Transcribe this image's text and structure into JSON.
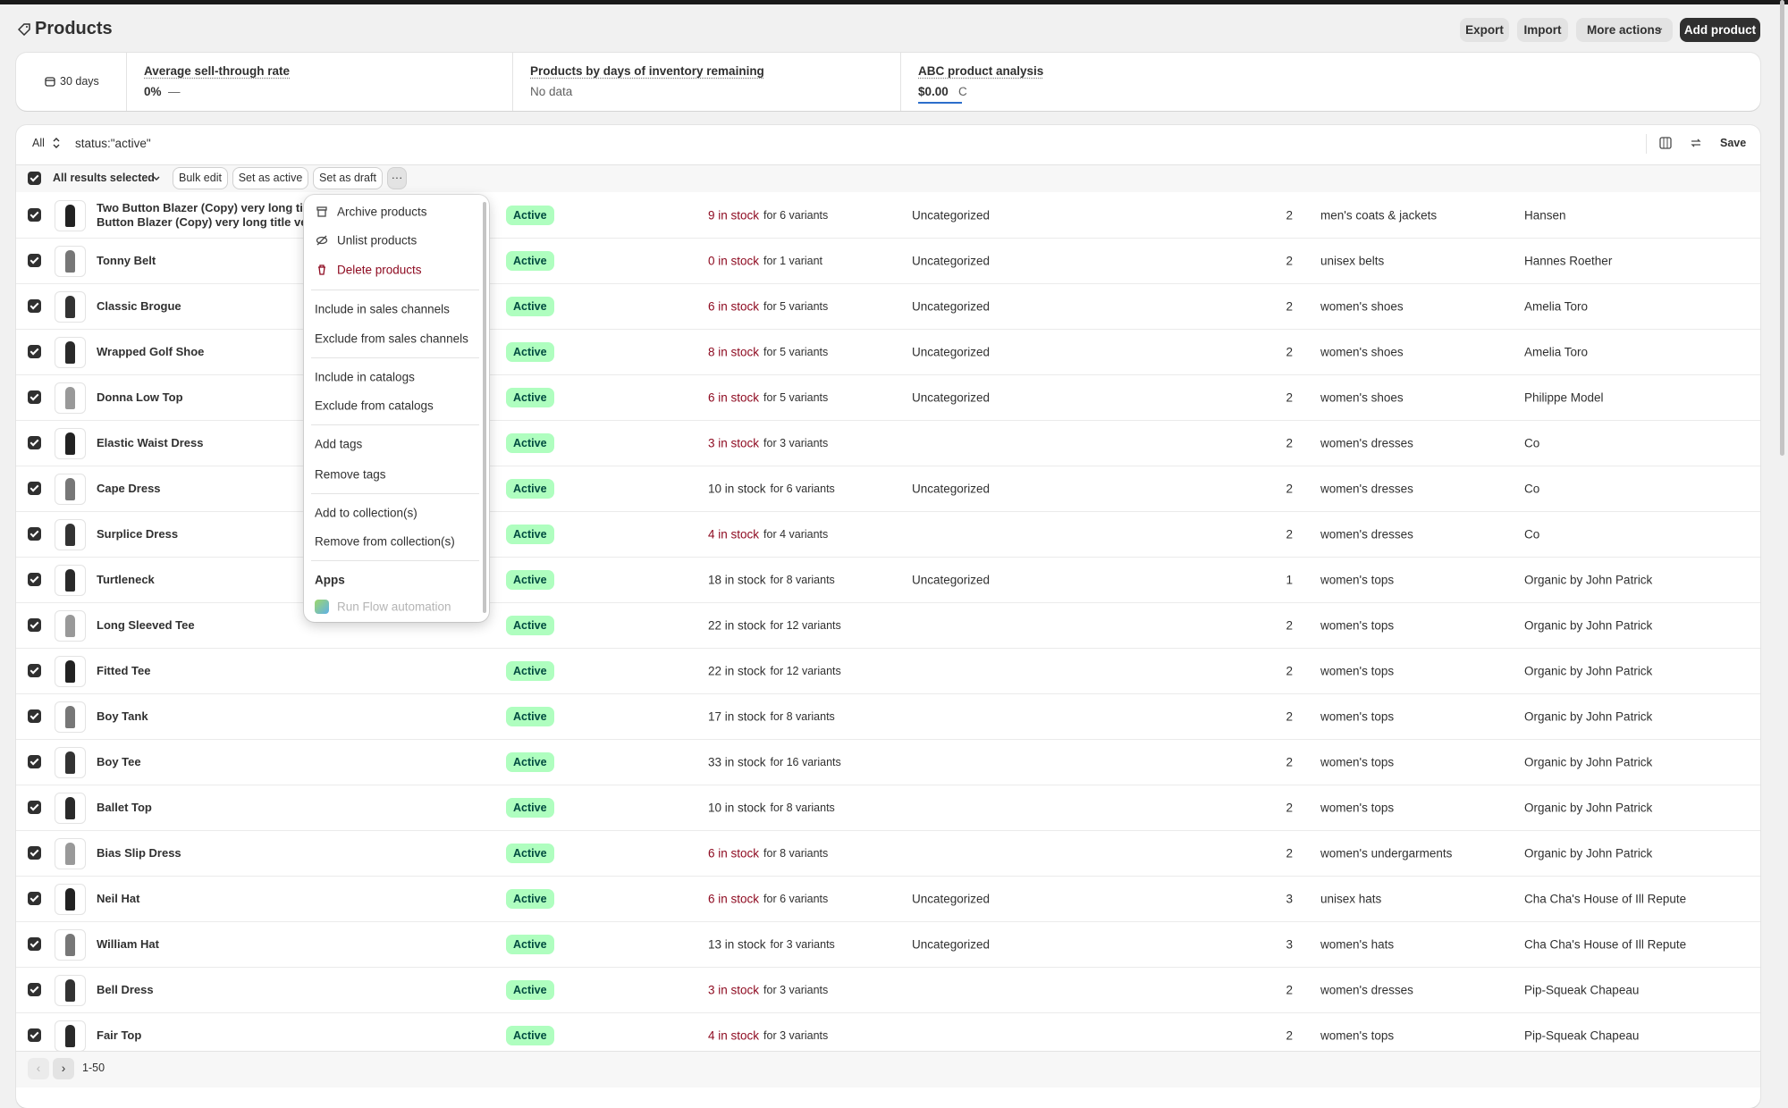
{
  "header": {
    "title": "Products",
    "buttons": [
      "Export",
      "Import",
      "More actions",
      "Add product"
    ]
  },
  "metrics": {
    "period": "30 days",
    "cards": [
      {
        "title": "Average sell-through rate",
        "value": "0%",
        "trend": "—"
      },
      {
        "title": "Products by days of inventory remaining",
        "value": "No data"
      },
      {
        "title": "ABC product analysis",
        "value": "$0.00",
        "trend": "C"
      }
    ]
  },
  "filter": {
    "tab": "All",
    "query": "status:\"active\"",
    "save": "Save"
  },
  "bulk": {
    "selection": "All results selected",
    "actions": [
      "Bulk edit",
      "Set as active",
      "Set as draft"
    ]
  },
  "menu": {
    "groups": [
      [
        {
          "label": "Archive products",
          "icon": "archive"
        },
        {
          "label": "Unlist products",
          "icon": "unlist"
        },
        {
          "label": "Delete products",
          "icon": "delete",
          "color": "#8e0b21"
        }
      ],
      [
        {
          "label": "Include in sales channels"
        },
        {
          "label": "Exclude from sales channels"
        }
      ],
      [
        {
          "label": "Include in catalogs"
        },
        {
          "label": "Exclude from catalogs"
        }
      ],
      [
        {
          "label": "Add tags"
        },
        {
          "label": "Remove tags"
        }
      ],
      [
        {
          "label": "Add to collection(s)"
        },
        {
          "label": "Remove from collection(s)"
        }
      ]
    ],
    "apps_heading": "Apps",
    "apps": [
      "Run Flow automation"
    ]
  },
  "rows": [
    {
      "name": "Two Button Blazer (Copy) very long title ve Button Blazer (Copy) very long title very l",
      "status": "Active",
      "stock": "9 in stock",
      "variants": "for 6 variants",
      "category": "Uncategorized",
      "count": "2",
      "type": "men's coats & jackets",
      "vendor": "Hansen",
      "stock_color": "#8e0b21"
    },
    {
      "name": "Tonny Belt",
      "status": "Active",
      "stock": "0 in stock",
      "variants": "for 1 variant",
      "category": "Uncategorized",
      "count": "2",
      "type": "unisex belts",
      "vendor": "Hannes Roether",
      "stock_color": "#8e0b21"
    },
    {
      "name": "Classic Brogue",
      "status": "Active",
      "stock": "6 in stock",
      "variants": "for 5 variants",
      "category": "Uncategorized",
      "count": "2",
      "type": "women's shoes",
      "vendor": "Amelia Toro",
      "stock_color": "#8e0b21"
    },
    {
      "name": "Wrapped Golf Shoe",
      "status": "Active",
      "stock": "8 in stock",
      "variants": "for 5 variants",
      "category": "Uncategorized",
      "count": "2",
      "type": "women's shoes",
      "vendor": "Amelia Toro",
      "stock_color": "#8e0b21"
    },
    {
      "name": "Donna Low Top",
      "status": "Active",
      "stock": "6 in stock",
      "variants": "for 5 variants",
      "category": "Uncategorized",
      "count": "2",
      "type": "women's shoes",
      "vendor": "Philippe Model",
      "stock_color": "#8e0b21"
    },
    {
      "name": "Elastic Waist Dress",
      "status": "Active",
      "stock": "3 in stock",
      "variants": "for 3 variants",
      "category": null,
      "count": "2",
      "type": "women's dresses",
      "vendor": "Co",
      "stock_color": "#8e0b21"
    },
    {
      "name": "Cape Dress",
      "status": "Active",
      "stock": "10 in stock",
      "variants": "for 6 variants",
      "category": "Uncategorized",
      "count": "2",
      "type": "women's dresses",
      "vendor": "Co",
      "stock_color": "#303030"
    },
    {
      "name": "Surplice Dress",
      "status": "Active",
      "stock": "4 in stock",
      "variants": "for 4 variants",
      "category": null,
      "count": "2",
      "type": "women's dresses",
      "vendor": "Co",
      "stock_color": "#8e0b21"
    },
    {
      "name": "Turtleneck",
      "status": "Active",
      "stock": "18 in stock",
      "variants": "for 8 variants",
      "category": "Uncategorized",
      "count": "1",
      "type": "women's tops",
      "vendor": "Organic by John Patrick",
      "stock_color": "#303030"
    },
    {
      "name": "Long Sleeved Tee",
      "status": "Active",
      "stock": "22 in stock",
      "variants": "for 12 variants",
      "category": null,
      "count": "2",
      "type": "women's tops",
      "vendor": "Organic by John Patrick",
      "stock_color": "#303030"
    },
    {
      "name": "Fitted Tee",
      "status": "Active",
      "stock": "22 in stock",
      "variants": "for 12 variants",
      "category": null,
      "count": "2",
      "type": "women's tops",
      "vendor": "Organic by John Patrick",
      "stock_color": "#303030"
    },
    {
      "name": "Boy Tank",
      "status": "Active",
      "stock": "17 in stock",
      "variants": "for 8 variants",
      "category": null,
      "count": "2",
      "type": "women's tops",
      "vendor": "Organic by John Patrick",
      "stock_color": "#303030"
    },
    {
      "name": "Boy Tee",
      "status": "Active",
      "stock": "33 in stock",
      "variants": "for 16 variants",
      "category": null,
      "count": "2",
      "type": "women's tops",
      "vendor": "Organic by John Patrick",
      "stock_color": "#303030"
    },
    {
      "name": "Ballet Top",
      "status": "Active",
      "stock": "10 in stock",
      "variants": "for 8 variants",
      "category": null,
      "count": "2",
      "type": "women's tops",
      "vendor": "Organic by John Patrick",
      "stock_color": "#303030"
    },
    {
      "name": "Bias Slip Dress",
      "status": "Active",
      "stock": "6 in stock",
      "variants": "for 8 variants",
      "category": null,
      "count": "2",
      "type": "women's undergarments",
      "vendor": "Organic by John Patrick",
      "stock_color": "#8e0b21"
    },
    {
      "name": "Neil Hat",
      "status": "Active",
      "stock": "6 in stock",
      "variants": "for 6 variants",
      "category": "Uncategorized",
      "count": "3",
      "type": "unisex hats",
      "vendor": "Cha Cha's House of Ill Repute",
      "stock_color": "#8e0b21"
    },
    {
      "name": "William Hat",
      "status": "Active",
      "stock": "13 in stock",
      "variants": "for 3 variants",
      "category": "Uncategorized",
      "count": "3",
      "type": "women's hats",
      "vendor": "Cha Cha's House of Ill Repute",
      "stock_color": "#303030"
    },
    {
      "name": "Bell Dress",
      "status": "Active",
      "stock": "3 in stock",
      "variants": "for 3 variants",
      "category": null,
      "count": "2",
      "type": "women's dresses",
      "vendor": "Pip-Squeak Chapeau",
      "stock_color": "#8e0b21"
    },
    {
      "name": "Fair Top",
      "status": "Active",
      "stock": "4 in stock",
      "variants": "for 3 variants",
      "category": null,
      "count": "2",
      "type": "women's tops",
      "vendor": "Pip-Squeak Chapeau",
      "stock_color": "#8e0b21"
    }
  ],
  "pagination": "1-50"
}
